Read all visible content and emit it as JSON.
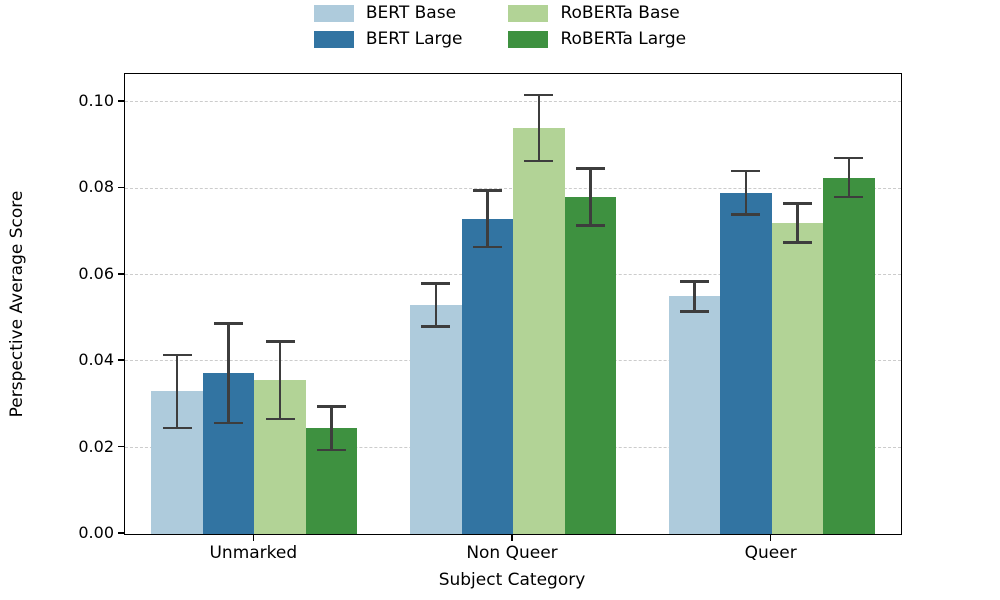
{
  "chart_data": {
    "type": "bar",
    "title": "",
    "xlabel": "Subject Category",
    "ylabel": "Perspective Average Score",
    "categories": [
      "Unmarked",
      "Non Queer",
      "Queer"
    ],
    "series": [
      {
        "name": "BERT Base",
        "color": "#aecbdc",
        "values": [
          0.033,
          0.053,
          0.055
        ],
        "errors": [
          0.0085,
          0.005,
          0.0035
        ]
      },
      {
        "name": "BERT Large",
        "color": "#3274a2",
        "values": [
          0.0372,
          0.073,
          0.079
        ],
        "errors": [
          0.0115,
          0.0065,
          0.005
        ]
      },
      {
        "name": "RoBERTa Base",
        "color": "#b2d396",
        "values": [
          0.0356,
          0.094,
          0.072
        ],
        "errors": [
          0.009,
          0.0076,
          0.0045
        ]
      },
      {
        "name": "RoBERTa Large",
        "color": "#3e9140",
        "values": [
          0.0245,
          0.078,
          0.0825
        ],
        "errors": [
          0.005,
          0.0066,
          0.0045
        ]
      }
    ],
    "ylim": [
      0,
      0.1065
    ],
    "yticks": [
      0,
      0.02,
      0.04,
      0.06,
      0.08,
      0.1
    ],
    "ytick_labels": [
      "0.00",
      "0.02",
      "0.04",
      "0.06",
      "0.08",
      "0.10"
    ],
    "grid": "horizontal-dashed",
    "gridline_color": "#cccccc",
    "errorbar_color": "#3d3d3d",
    "legend_position": "top-center",
    "legend_columns": 2
  }
}
